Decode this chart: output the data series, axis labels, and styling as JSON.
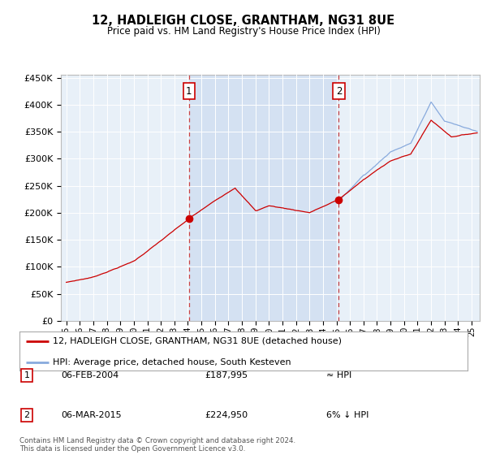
{
  "title": "12, HADLEIGH CLOSE, GRANTHAM, NG31 8UE",
  "subtitle": "Price paid vs. HM Land Registry's House Price Index (HPI)",
  "property_label": "12, HADLEIGH CLOSE, GRANTHAM, NG31 8UE (detached house)",
  "hpi_label": "HPI: Average price, detached house, South Kesteven",
  "footer": "Contains HM Land Registry data © Crown copyright and database right 2024.\nThis data is licensed under the Open Government Licence v3.0.",
  "sale1_date": "06-FEB-2004",
  "sale1_price": "£187,995",
  "sale1_hpi": "≈ HPI",
  "sale2_date": "06-MAR-2015",
  "sale2_price": "£224,950",
  "sale2_hpi": "6% ↓ HPI",
  "ylim": [
    0,
    455000
  ],
  "yticks": [
    0,
    50000,
    100000,
    150000,
    200000,
    250000,
    300000,
    350000,
    400000,
    450000
  ],
  "plot_bg": "#e8f0f8",
  "red_color": "#cc0000",
  "blue_color": "#88aadd",
  "vline1_x": 2004.08,
  "vline2_x": 2015.17,
  "sale_marker1_year": 2004.08,
  "sale_marker1_value": 187995,
  "sale_marker2_year": 2015.17,
  "sale_marker2_value": 224950,
  "xmin": 1994.6,
  "xmax": 2025.6
}
